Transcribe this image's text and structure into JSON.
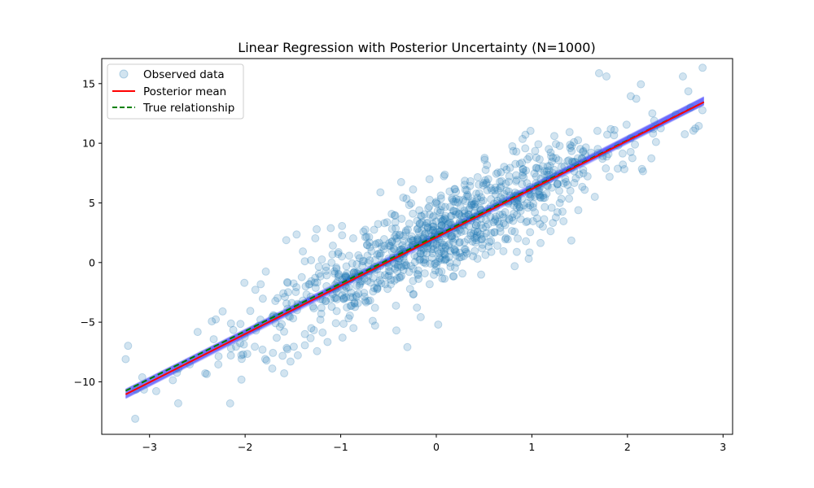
{
  "chart_data": {
    "type": "scatter",
    "title": "Linear Regression with Posterior Uncertainty (N=1000)",
    "xlabel": "",
    "ylabel": "",
    "xlim": [
      -3.5,
      3.1
    ],
    "ylim": [
      -14.4,
      17.1
    ],
    "xticks": [
      -3,
      -2,
      -1,
      0,
      1,
      2,
      3
    ],
    "yticks": [
      -10,
      -5,
      0,
      5,
      10,
      15
    ],
    "xtick_labels": [
      "−3",
      "−2",
      "−1",
      "0",
      "1",
      "2",
      "3"
    ],
    "ytick_labels": [
      "−10",
      "−5",
      "0",
      "5",
      "10",
      "15"
    ],
    "grid": false,
    "legend": {
      "placement": "top-left",
      "entries": [
        "Observed data",
        "Posterior mean",
        "True relationship"
      ]
    },
    "series": [
      {
        "name": "Observed data",
        "kind": "scatter",
        "color": "#1f77b4",
        "n": 1000,
        "x_range": [
          -3.25,
          2.8
        ],
        "trend": {
          "slope": 4.0,
          "intercept": 2.2
        },
        "residual_sd": 2.0,
        "notable_points": [
          {
            "x": -3.25,
            "y": -8.1
          },
          {
            "x": -3.15,
            "y": -13.1
          },
          {
            "x": -2.7,
            "y": -11.8
          },
          {
            "x": 1.78,
            "y": 15.6
          },
          {
            "x": 2.58,
            "y": 15.6
          },
          {
            "x": 0.02,
            "y": -5.2
          }
        ]
      },
      {
        "name": "Posterior mean",
        "kind": "line",
        "color": "#ff0000",
        "x": [
          -3.25,
          2.8
        ],
        "y": [
          -11.05,
          13.45
        ]
      },
      {
        "name": "True relationship",
        "kind": "line",
        "dash": "dashed",
        "color": "#008000",
        "x": [
          -3.25,
          2.8
        ],
        "y": [
          -10.75,
          13.45
        ]
      },
      {
        "name": "",
        "kind": "posterior-samples",
        "color": "#0000ff",
        "x": [
          -3.25,
          2.8
        ],
        "y_low": [
          -11.4,
          13.2
        ],
        "y_high": [
          -10.6,
          13.9
        ]
      }
    ]
  }
}
